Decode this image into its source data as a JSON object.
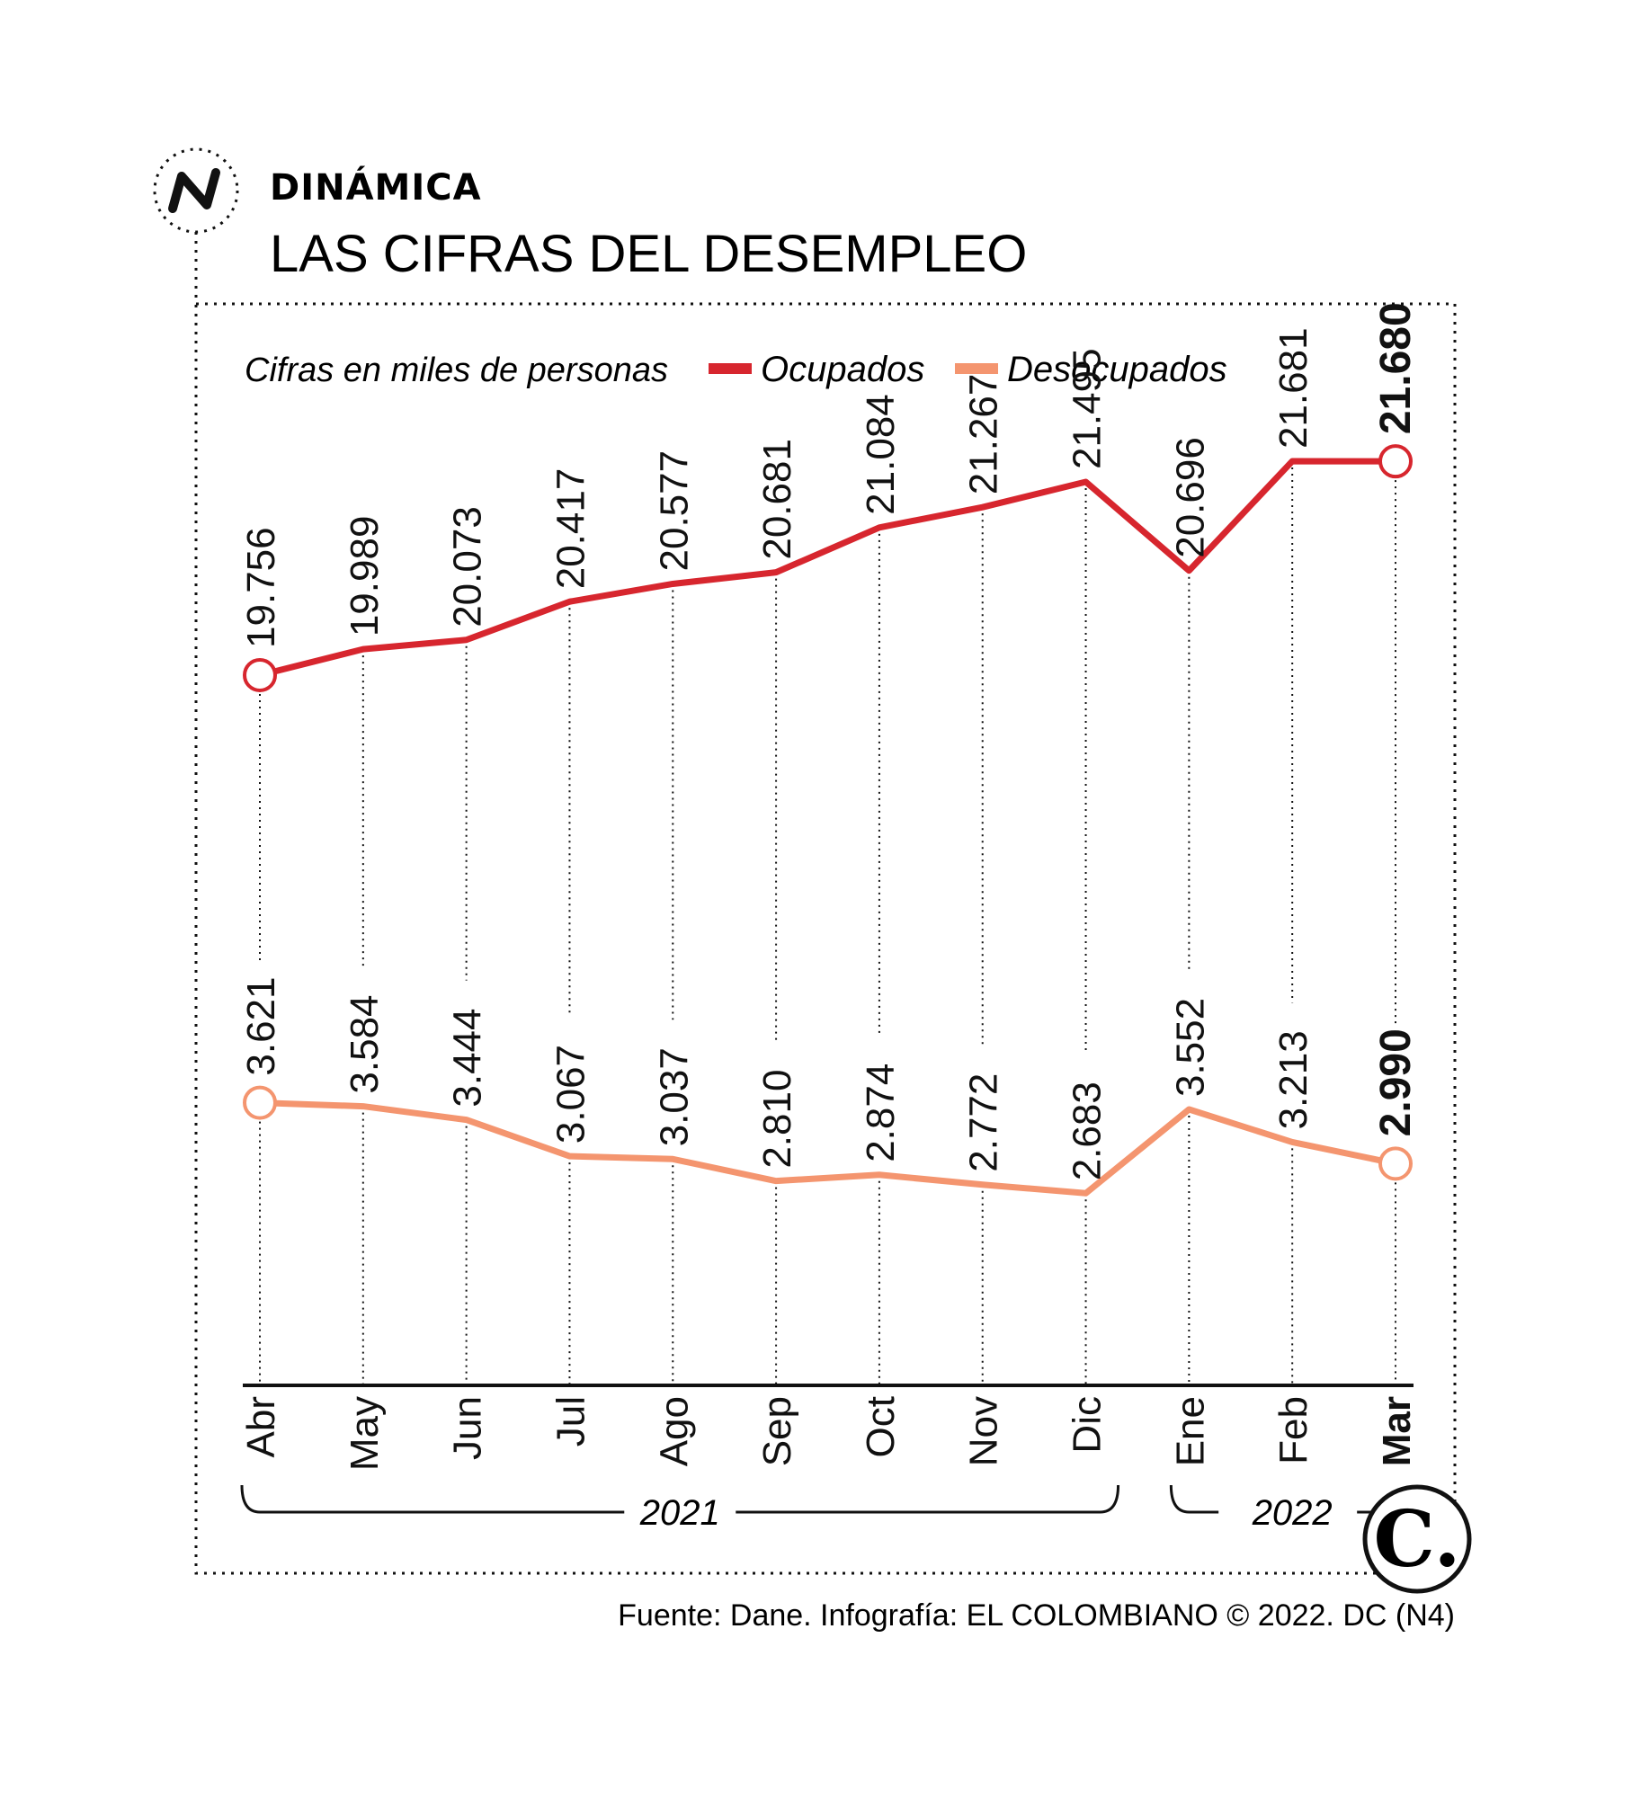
{
  "header": {
    "kicker": "DINÁMICA",
    "title": "LAS CIFRAS DEL DESEMPLEO"
  },
  "note": "Cifras en miles de personas",
  "source": "Fuente: Dane. Infografía: EL COLOMBIANO © 2022. DC (N4)",
  "logo_letter": "C.",
  "colors": {
    "ocupados": "#d7262e",
    "desocupados": "#f4956f",
    "ink": "#111111"
  },
  "icons": [
    "trend-icon",
    "el-colombiano-logo-icon"
  ],
  "chart_data": {
    "type": "line",
    "title": "LAS CIFRAS DEL DESEMPLEO",
    "ylabel": "Cifras en miles de personas",
    "categories": [
      "Abr",
      "May",
      "Jun",
      "Jul",
      "Ago",
      "Sep",
      "Oct",
      "Nov",
      "Dic",
      "Ene",
      "Feb",
      "Mar"
    ],
    "year_groups": [
      {
        "label": "2021",
        "from": "Abr",
        "to": "Dic"
      },
      {
        "label": "2022",
        "from": "Ene",
        "to": "Mar"
      }
    ],
    "series": [
      {
        "name": "Ocupados",
        "values": [
          19756,
          19989,
          20073,
          20417,
          20577,
          20681,
          21084,
          21267,
          21495,
          20696,
          21681,
          21680
        ],
        "labels": [
          "19.756",
          "19.989",
          "20.073",
          "20.417",
          "20.577",
          "20.681",
          "21.084",
          "21.267",
          "21.495",
          "20.696",
          "21.681",
          "21.680"
        ]
      },
      {
        "name": "Desocupados",
        "values": [
          3621,
          3584,
          3444,
          3067,
          3037,
          2810,
          2874,
          2772,
          2683,
          3552,
          3213,
          2990
        ],
        "labels": [
          "3.621",
          "3.584",
          "3.444",
          "3.067",
          "3.037",
          "2.810",
          "2.874",
          "2.772",
          "2.683",
          "3.552",
          "3.213",
          "2.990"
        ]
      }
    ],
    "legend_position": "top",
    "grid": false
  }
}
